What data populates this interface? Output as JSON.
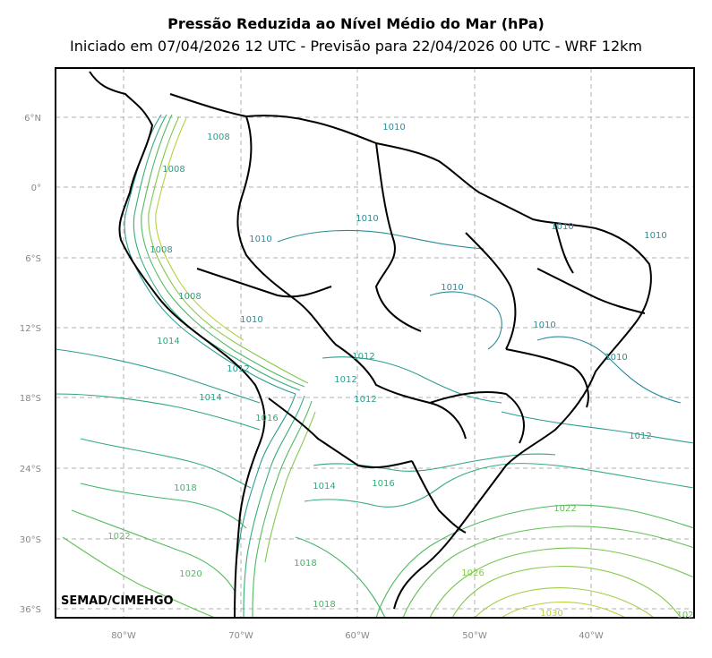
{
  "title": "Pressão Reduzida ao Nível Médio do Mar (hPa)",
  "subtitle": "Iniciado em 07/04/2026 12 UTC - Previsão para 22/04/2026 00 UTC - WRF 12km",
  "credit": "SEMAD/CIMEHGO",
  "lat_ticks": [
    "6°N",
    "0°",
    "6°S",
    "12°S",
    "18°S",
    "24°S",
    "30°S",
    "36°S"
  ],
  "lon_ticks": [
    "80°W",
    "70°W",
    "60°W",
    "50°W",
    "40°W"
  ],
  "contour_labels": [
    {
      "text": "1008",
      "color": "#2a9d8f"
    },
    {
      "text": "1008",
      "color": "#2a9d8f"
    },
    {
      "text": "1008",
      "color": "#2a9d8f"
    },
    {
      "text": "1008",
      "color": "#2a9d8f"
    },
    {
      "text": "1010",
      "color": "#2a8c9a"
    },
    {
      "text": "1010",
      "color": "#2a8c9a"
    },
    {
      "text": "1010",
      "color": "#2a8c9a"
    },
    {
      "text": "1010",
      "color": "#2a8c9a"
    },
    {
      "text": "1010",
      "color": "#2a8c9a"
    },
    {
      "text": "1010",
      "color": "#2a8c9a"
    },
    {
      "text": "1010",
      "color": "#2a8c9a"
    },
    {
      "text": "1010",
      "color": "#2a8c9a"
    },
    {
      "text": "1010",
      "color": "#2a8c9a"
    },
    {
      "text": "1012",
      "color": "#2a9d8f"
    },
    {
      "text": "1012",
      "color": "#2a9d8f"
    },
    {
      "text": "1012",
      "color": "#2a9d8f"
    },
    {
      "text": "1012",
      "color": "#2a9d8f"
    },
    {
      "text": "1012",
      "color": "#2a9d8f"
    },
    {
      "text": "1014",
      "color": "#2ea583"
    },
    {
      "text": "1014",
      "color": "#2ea583"
    },
    {
      "text": "1014",
      "color": "#2ea583"
    },
    {
      "text": "1016",
      "color": "#35ad77"
    },
    {
      "text": "1016",
      "color": "#35ad77"
    },
    {
      "text": "1018",
      "color": "#41b46b"
    },
    {
      "text": "1018",
      "color": "#41b46b"
    },
    {
      "text": "1018",
      "color": "#41b46b"
    },
    {
      "text": "1020",
      "color": "#52ba5f"
    },
    {
      "text": "1022",
      "color": "#63c055"
    },
    {
      "text": "1022",
      "color": "#63c055"
    },
    {
      "text": "1026",
      "color": "#86c84a"
    },
    {
      "text": "1030",
      "color": "#b5d33c"
    },
    {
      "text": "102",
      "color": "#63c055"
    }
  ],
  "colors": {
    "isobar_low": "#2a8c9a",
    "isobar_mid": "#35ad77",
    "isobar_high": "#b5d33c",
    "border": "#000000",
    "grid": "#b0b0b0"
  }
}
